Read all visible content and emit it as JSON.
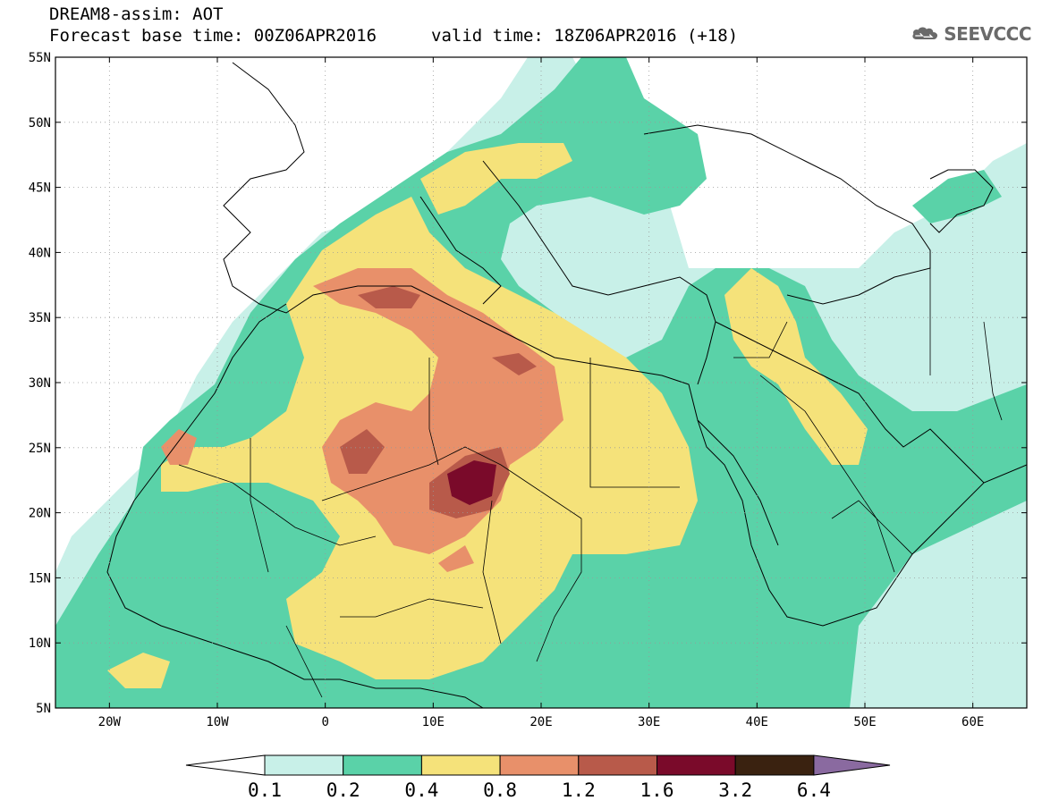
{
  "header": {
    "title": "DREAM8-assim: AOT",
    "base_time": "Forecast base time: 00Z06APR2016",
    "valid_time": "valid time: 18Z06APR2016 (+18)"
  },
  "logo": {
    "text": "SEEVCCC",
    "icon": "cloud-icon"
  },
  "map": {
    "lon_range": [
      -25,
      65
    ],
    "lat_range": [
      5,
      55
    ],
    "lat_labels": [
      {
        "value": 55,
        "label": "55N"
      },
      {
        "value": 50,
        "label": "50N"
      },
      {
        "value": 45,
        "label": "45N"
      },
      {
        "value": 40,
        "label": "40N"
      },
      {
        "value": 35,
        "label": "35N"
      },
      {
        "value": 30,
        "label": "30N"
      },
      {
        "value": 25,
        "label": "25N"
      },
      {
        "value": 20,
        "label": "20N"
      },
      {
        "value": 15,
        "label": "15N"
      },
      {
        "value": 10,
        "label": "10N"
      },
      {
        "value": 5,
        "label": "5N"
      }
    ],
    "lon_labels": [
      {
        "value": -20,
        "label": "20W"
      },
      {
        "value": -10,
        "label": "10W"
      },
      {
        "value": 0,
        "label": "0"
      },
      {
        "value": 10,
        "label": "10E"
      },
      {
        "value": 20,
        "label": "20E"
      },
      {
        "value": 30,
        "label": "30E"
      },
      {
        "value": 40,
        "label": "40E"
      },
      {
        "value": 50,
        "label": "50E"
      },
      {
        "value": 60,
        "label": "60E"
      }
    ],
    "grid": true,
    "colors": {
      "c0": "#c8f0e8",
      "c1": "#5ad2a8",
      "c2": "#f5e27a",
      "c3": "#e8906a",
      "c4": "#b85a4a",
      "c5": "#7a0a2a"
    }
  },
  "legend": {
    "colors": [
      "#c8f0e8",
      "#5ad2a8",
      "#f5e27a",
      "#e8906a",
      "#b85a4a",
      "#7a0a2a",
      "#3a2210"
    ],
    "under_color": "#ffffff",
    "over_color": "#8a6aa0",
    "labels": [
      "0.1",
      "0.2",
      "0.4",
      "0.8",
      "1.2",
      "1.6",
      "3.2",
      "6.4"
    ]
  }
}
